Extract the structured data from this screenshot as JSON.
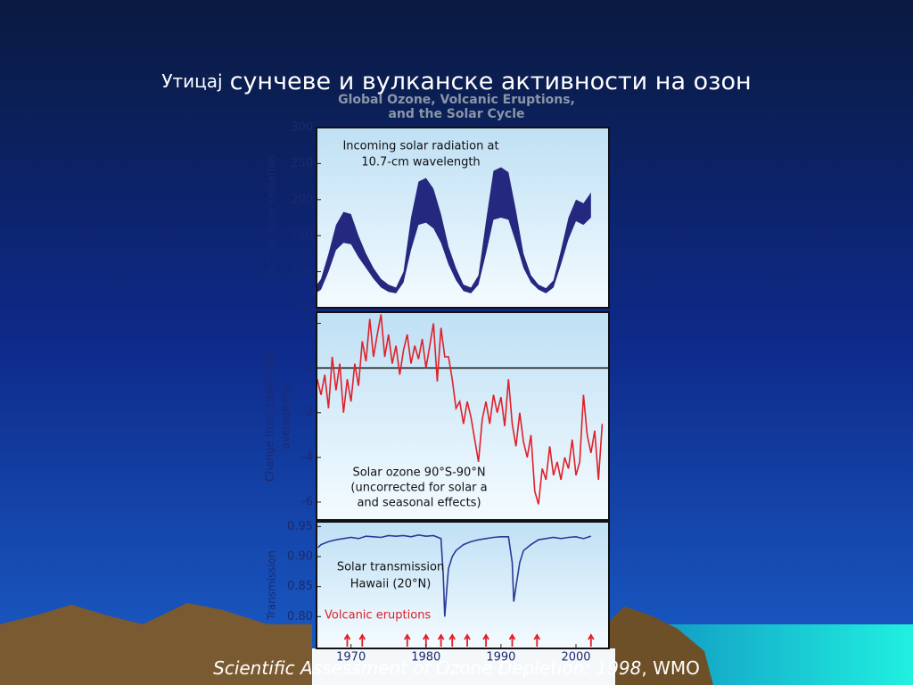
{
  "title": [
    "Утицај",
    "сунчеве и вулканске активности на озон"
  ],
  "figure_title": [
    "Global Ozone, Volcanic Eruptions,",
    "and the Solar Cycle"
  ],
  "caption": [
    "Scientific Assessment of Ozone Depletion: 1998",
    ", WMO"
  ],
  "chart_data": [
    {
      "type": "band",
      "y_label": "10.7-cm solar radiation",
      "annotation": [
        "Incoming solar radiation at",
        "10.7-cm wavelength"
      ],
      "color": "#25287f",
      "xlim": [
        1965.4,
        2004.4
      ],
      "ylim": [
        50,
        300
      ],
      "yticks": [
        50,
        100,
        150,
        200,
        250,
        300
      ],
      "x": [
        1965,
        1966,
        1967,
        1968,
        1969,
        1970,
        1971,
        1972,
        1973,
        1974,
        1975,
        1976,
        1977,
        1978,
        1979,
        1980,
        1981,
        1982,
        1983,
        1984,
        1985,
        1986,
        1987,
        1988,
        1989,
        1990,
        1991,
        1992,
        1993,
        1994,
        1995,
        1996,
        1997,
        1998,
        1999,
        2000,
        2001,
        2002
      ],
      "lower": [
        68,
        75,
        100,
        130,
        140,
        138,
        120,
        105,
        90,
        78,
        72,
        70,
        85,
        130,
        165,
        168,
        160,
        140,
        110,
        88,
        73,
        70,
        82,
        125,
        172,
        175,
        172,
        140,
        105,
        85,
        75,
        70,
        78,
        110,
        145,
        170,
        165,
        175
      ],
      "upper": [
        75,
        90,
        125,
        165,
        183,
        180,
        150,
        125,
        105,
        90,
        82,
        78,
        100,
        175,
        225,
        230,
        215,
        180,
        135,
        105,
        82,
        78,
        95,
        170,
        240,
        245,
        238,
        185,
        125,
        95,
        82,
        77,
        88,
        130,
        175,
        200,
        195,
        210
      ]
    },
    {
      "type": "line",
      "y_label": [
        "Change from 1964-1980",
        "average (%)"
      ],
      "annotation": [
        "Solar  ozone 90°S-90°N",
        "(uncorrected for solar a",
        "and seasonal effects)"
      ],
      "color": "#e0202a",
      "xlim": [
        1965.4,
        2004.4
      ],
      "ylim": [
        -6.8,
        2.5
      ],
      "yticks": [
        2,
        0,
        -2,
        -4,
        -6
      ],
      "x": [
        1965.5,
        1966,
        1966.5,
        1967,
        1967.5,
        1968,
        1968.5,
        1969,
        1969.5,
        1970,
        1970.5,
        1971,
        1971.5,
        1972,
        1972.5,
        1973,
        1973.5,
        1974,
        1974.5,
        1975,
        1975.5,
        1976,
        1976.5,
        1977,
        1977.5,
        1978,
        1978.5,
        1979,
        1979.5,
        1980,
        1980.5,
        1981,
        1981.5,
        1982,
        1982.5,
        1983,
        1983.5,
        1984,
        1984.5,
        1985,
        1985.5,
        1986,
        1986.5,
        1987,
        1987.5,
        1988,
        1988.5,
        1989,
        1989.5,
        1990,
        1990.5,
        1991,
        1991.5,
        1992,
        1992.5,
        1993,
        1993.5,
        1994,
        1994.5,
        1995,
        1995.5,
        1996,
        1996.5,
        1997,
        1997.5,
        1998,
        1998.5,
        1999,
        1999.5,
        2000,
        2000.5,
        2001,
        2001.5,
        2002,
        2002.5,
        2003,
        2003.5
      ],
      "values": [
        -0.5,
        -1.2,
        -0.3,
        -1.8,
        0.5,
        -1,
        0.2,
        -2,
        -0.5,
        -1.5,
        0.2,
        -0.8,
        1.2,
        0.3,
        2.2,
        0.5,
        1.5,
        2.4,
        0.5,
        1.5,
        0.2,
        1.0,
        -0.3,
        0.8,
        1.5,
        0.2,
        1.0,
        0.4,
        1.3,
        0.0,
        1.0,
        2.0,
        -0.6,
        1.8,
        0.5,
        0.5,
        -0.5,
        -1.8,
        -1.5,
        -2.5,
        -1.5,
        -2.2,
        -3.2,
        -4.2,
        -2.3,
        -1.5,
        -2.5,
        -1.2,
        -2.0,
        -1.3,
        -2.6,
        -0.5,
        -2.5,
        -3.5,
        -2.0,
        -3.3,
        -4.0,
        -3.0,
        -5.5,
        -6.1,
        -4.5,
        -5.0,
        -3.5,
        -4.8,
        -4.2,
        -5.0,
        -4.0,
        -4.5,
        -3.2,
        -4.8,
        -4.2,
        -1.2,
        -3.0,
        -3.8,
        -2.8,
        -5.0,
        -2.5
      ]
    },
    {
      "type": "line",
      "y_label": "Transmission",
      "annotation": [
        "Solar transmission",
        "Hawaii (20°N)"
      ],
      "eruptions_label": "Volcanic eruptions",
      "color": "#2a3a9a",
      "eruption_color": "#e0202a",
      "xlim": [
        1965.4,
        2004.4
      ],
      "ylim": [
        0.747,
        0.958
      ],
      "yticks": [
        0.95,
        {
          "value": 0.9,
          "label": "0.90"
        },
        0.85,
        {
          "value": 0.8,
          "label": "0.80"
        }
      ],
      "xticks": [
        1970,
        1980,
        1990,
        2000
      ],
      "x": [
        1965.6,
        1966,
        1967,
        1968,
        1969,
        1970,
        1971,
        1972,
        1973,
        1974,
        1975,
        1976,
        1977,
        1978,
        1979,
        1980,
        1981,
        1982,
        1982.3,
        1982.5,
        1982.8,
        1983,
        1983.5,
        1984,
        1985,
        1986,
        1987,
        1988,
        1989,
        1990,
        1991,
        1991.5,
        1991.7,
        1992,
        1992.5,
        1993,
        1994,
        1995,
        1996,
        1997,
        1998,
        1999,
        2000,
        2001,
        2002
      ],
      "values": [
        0.915,
        0.92,
        0.925,
        0.928,
        0.93,
        0.932,
        0.93,
        0.934,
        0.933,
        0.932,
        0.935,
        0.934,
        0.935,
        0.933,
        0.936,
        0.934,
        0.935,
        0.93,
        0.87,
        0.8,
        0.85,
        0.88,
        0.9,
        0.91,
        0.92,
        0.925,
        0.928,
        0.93,
        0.932,
        0.933,
        0.933,
        0.89,
        0.825,
        0.85,
        0.89,
        0.91,
        0.92,
        0.928,
        0.93,
        0.932,
        0.93,
        0.932,
        0.933,
        0.93,
        0.934
      ],
      "eruptions": [
        1969.5,
        1971.5,
        1977.5,
        1980,
        1982,
        1983.5,
        1985.5,
        1988,
        1991.5,
        1994.8,
        2002
      ]
    }
  ]
}
